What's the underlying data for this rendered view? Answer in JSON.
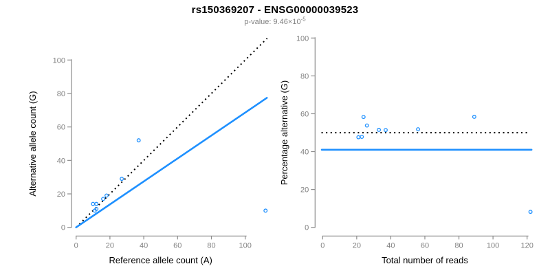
{
  "header": {
    "title": "rs150369207 - ENSG00000039523",
    "subtitle_prefix": "p-value: 9.46×10",
    "subtitle_exponent": "-5"
  },
  "colors": {
    "accent_blue": "#1E90FF",
    "dotted_line_black": "#000000",
    "axis_gray": "#8C8C8C",
    "tick_label_gray": "#808080",
    "subtitle_gray": "#808080",
    "title_black": "#000000",
    "background": "#FFFFFF"
  },
  "chart_data": [
    {
      "type": "scatter",
      "panel": "left",
      "xlabel": "Reference allele count (A)",
      "ylabel": "Alternative allele count (G)",
      "xlim": [
        0,
        113
      ],
      "ylim": [
        0,
        113
      ],
      "xticks": [
        0,
        20,
        40,
        60,
        80,
        100
      ],
      "yticks": [
        0,
        20,
        40,
        60,
        80,
        100
      ],
      "grid": false,
      "legend": false,
      "marker": "open-circle",
      "points": [
        [
          10,
          14
        ],
        [
          12,
          14
        ],
        [
          11,
          10
        ],
        [
          12,
          11
        ],
        [
          16,
          17
        ],
        [
          18,
          19
        ],
        [
          27,
          29
        ],
        [
          37,
          52
        ],
        [
          112,
          10
        ]
      ],
      "lines": [
        {
          "name": "identity-50pct-dotted-line",
          "style": "dotted",
          "color": "#000000",
          "points": [
            [
              0,
              0
            ],
            [
              113,
              113
            ]
          ]
        },
        {
          "name": "fitted-proportion-line",
          "style": "solid",
          "color": "#1E90FF",
          "points": [
            [
              0,
              0
            ],
            [
              112.8,
              77.4
            ]
          ]
        }
      ]
    },
    {
      "type": "scatter",
      "panel": "right",
      "xlabel": "Total number of reads",
      "ylabel": "Percentage alternative (G)",
      "xlim": [
        0,
        123
      ],
      "ylim": [
        0,
        104
      ],
      "xticks": [
        0,
        20,
        40,
        60,
        80,
        100,
        120
      ],
      "yticks": [
        0,
        20,
        40,
        60,
        80,
        100
      ],
      "grid": false,
      "legend": false,
      "marker": "open-circle",
      "points": [
        [
          21,
          47.6
        ],
        [
          23,
          47.8
        ],
        [
          24,
          58.3
        ],
        [
          26,
          53.8
        ],
        [
          33,
          51.5
        ],
        [
          37,
          51.4
        ],
        [
          56,
          51.8
        ],
        [
          89,
          58.4
        ],
        [
          122,
          8.2
        ]
      ],
      "lines": [
        {
          "name": "expected-50pct-dotted-line",
          "style": "dotted",
          "color": "#000000",
          "points": [
            [
              -0.7,
              50
            ],
            [
              121.3,
              50
            ]
          ]
        },
        {
          "name": "observed-41pct-line",
          "style": "solid",
          "color": "#1E90FF",
          "points": [
            [
              -0.5,
              41
            ],
            [
              122.6,
              41
            ]
          ]
        }
      ]
    }
  ]
}
